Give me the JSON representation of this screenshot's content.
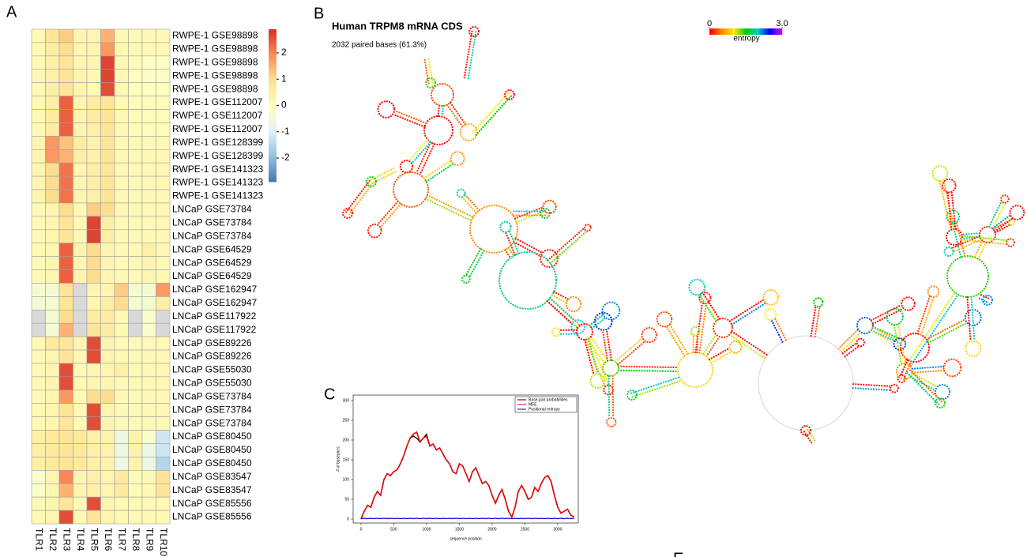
{
  "panels": [
    "A",
    "B",
    "C",
    "E"
  ],
  "structure": {
    "title": "Human TRPM8 mRNA CDS",
    "subtitle": "2032 paired bases (61.3%)",
    "colorbar_label": "entropy",
    "cticks": [
      0,
      {
        "value": 3,
        "label": "3.0"
      }
    ],
    "clim": [
      0,
      3
    ]
  },
  "chart_data": [
    {
      "type": "heatmap",
      "columns": [
        "TLR1",
        "TLR2",
        "TLR3",
        "TLR4",
        "TLR5",
        "TLR6",
        "TLR7",
        "TLR8",
        "TLR9",
        "TLR10"
      ],
      "rows": [
        "RWPE-1 GSE98898",
        "RWPE-1 GSE98898",
        "RWPE-1 GSE98898",
        "RWPE-1 GSE98898",
        "RWPE-1 GSE98898",
        "RWPE-1 GSE112007",
        "RWPE-1 GSE112007",
        "RWPE-1 GSE112007",
        "RWPE-1 GSE128399",
        "RWPE-1 GSE128399",
        "RWPE-1 GSE141323",
        "RWPE-1 GSE141323",
        "RWPE-1 GSE141323",
        "LNCaP GSE73784",
        "LNCaP GSE73784",
        "LNCaP GSE73784",
        "LNCaP GSE64529",
        "LNCaP GSE64529",
        "LNCaP GSE64529",
        "LNCaP GSE162947",
        "LNCaP GSE162947",
        "LNCaP GSE117922",
        "LNCaP GSE117922",
        "LNCaP GSE89226",
        "LNCaP GSE89226",
        "LNCaP GSE55030",
        "LNCaP GSE55030",
        "LNCaP GSE73784",
        "LNCaP GSE73784",
        "LNCaP GSE73784",
        "LNCaP GSE80450",
        "LNCaP GSE80450",
        "LNCaP GSE80450",
        "LNCaP GSE83547",
        "LNCaP GSE83547",
        "LNCaP GSE85556",
        "LNCaP GSE85556"
      ],
      "values": [
        [
          0.2,
          0.8,
          1.2,
          0.3,
          0.3,
          1.5,
          0.2,
          0.2,
          0.2,
          0.2
        ],
        [
          0.2,
          0.6,
          1.0,
          0.3,
          0.3,
          1.8,
          0.2,
          0.2,
          0.2,
          0.2
        ],
        [
          0.2,
          0.5,
          0.8,
          0.3,
          0.3,
          2.7,
          0.2,
          0.1,
          0,
          0
        ],
        [
          0.2,
          0.5,
          0.8,
          0.3,
          0.2,
          2.7,
          0.2,
          0,
          -0.1,
          -0.1
        ],
        [
          0.2,
          0.5,
          0.8,
          0.3,
          0.2,
          2.6,
          0.2,
          0,
          0,
          0
        ],
        [
          0.2,
          0.5,
          2.4,
          0.3,
          0.6,
          0.8,
          0.2,
          0.1,
          0.1,
          0.1
        ],
        [
          0.2,
          0.6,
          2.4,
          0.3,
          0.6,
          0.8,
          0.2,
          0.1,
          0.1,
          0.1
        ],
        [
          0.2,
          0.6,
          2.4,
          0.3,
          0.5,
          0.8,
          0.2,
          0.1,
          0.1,
          0.1
        ],
        [
          0.3,
          1.8,
          1.3,
          0.6,
          0.4,
          0.8,
          0.2,
          0.2,
          0.2,
          0.2
        ],
        [
          0.3,
          1.8,
          1.5,
          0.5,
          0.4,
          0.8,
          0.2,
          0.2,
          0.2,
          0.2
        ],
        [
          0.3,
          1.0,
          2.2,
          0.3,
          0.5,
          0.8,
          0.2,
          0.2,
          0.2,
          0.2
        ],
        [
          0.3,
          1.0,
          2.2,
          0.3,
          0.5,
          0.8,
          0.2,
          0.2,
          0.2,
          0.2
        ],
        [
          0.3,
          1.0,
          2.2,
          0.3,
          0.5,
          0.8,
          0.2,
          0.2,
          0.2,
          0.2
        ],
        [
          0.2,
          0.3,
          1.0,
          0.2,
          1.2,
          1.0,
          0.2,
          0.2,
          0.2,
          0.2
        ],
        [
          0.2,
          0.3,
          0.8,
          0.2,
          2.7,
          0.5,
          0.2,
          0.2,
          0.2,
          0.2
        ],
        [
          0.2,
          0.3,
          0.8,
          0.2,
          2.7,
          0.5,
          0.2,
          0.2,
          0.2,
          0.2
        ],
        [
          0.2,
          0.3,
          2.4,
          0.3,
          1.0,
          0.3,
          0.2,
          0.2,
          0.5,
          0.2
        ],
        [
          0.2,
          0.3,
          2.4,
          0.3,
          1.0,
          0.3,
          0.2,
          0.2,
          0.3,
          0.2
        ],
        [
          0.2,
          0.3,
          2.4,
          0.3,
          1.0,
          0.3,
          0.2,
          0.2,
          0.3,
          0.2
        ],
        [
          -0.3,
          -0.3,
          0.8,
          null,
          0.3,
          0.3,
          1.2,
          -0.3,
          -0.3,
          1.8
        ],
        [
          -0.4,
          -0.3,
          0.8,
          null,
          0.3,
          0.5,
          1.0,
          -0.3,
          -0.3,
          0.5
        ],
        [
          null,
          -0.3,
          1.0,
          null,
          0.6,
          0.6,
          0.2,
          null,
          -0.2,
          null
        ],
        [
          null,
          -0.3,
          1.5,
          null,
          0.8,
          0.6,
          0.2,
          null,
          -0.2,
          null
        ],
        [
          0.2,
          0.7,
          0.8,
          0.3,
          2.6,
          0.3,
          0.2,
          0.2,
          0.2,
          0.2
        ],
        [
          0.2,
          0.3,
          0.8,
          0.2,
          2.6,
          0.3,
          0.2,
          0.2,
          0.2,
          0.2
        ],
        [
          0.2,
          0.3,
          2.6,
          0.2,
          0.3,
          0.3,
          0.5,
          0.2,
          0.2,
          0.2
        ],
        [
          0.2,
          0.3,
          2.6,
          0.2,
          0.3,
          0.3,
          0.2,
          0.2,
          0.2,
          0.2
        ],
        [
          0.2,
          0.3,
          1.8,
          0.2,
          1.0,
          1.0,
          0.2,
          0.2,
          0.2,
          0.2
        ],
        [
          0.2,
          0.3,
          0.8,
          0.2,
          2.6,
          0.3,
          0.2,
          0.2,
          0.2,
          0.2
        ],
        [
          0.2,
          0.3,
          0.8,
          0.2,
          2.6,
          0.3,
          0.2,
          0.2,
          0.2,
          0.2
        ],
        [
          0.5,
          0.7,
          0.8,
          0.7,
          0.5,
          0.4,
          -0.6,
          0.4,
          -0.2,
          -1.2
        ],
        [
          0.5,
          0.7,
          0.8,
          0.7,
          0.5,
          0.4,
          -0.6,
          0.4,
          -0.6,
          -1.2
        ],
        [
          0.5,
          0.7,
          0.8,
          0.7,
          0.5,
          0.4,
          -0.6,
          0.4,
          -0.6,
          -1.5
        ],
        [
          -0.2,
          0.3,
          2.0,
          0.3,
          0.5,
          0.3,
          0.7,
          0.1,
          0.2,
          0.8
        ],
        [
          -0.2,
          0.3,
          1.5,
          0.3,
          0.5,
          0.3,
          0.7,
          0.1,
          0.2,
          0.8
        ],
        [
          0.2,
          0.3,
          0.8,
          0.2,
          2.6,
          0.3,
          0.2,
          0.2,
          0.2,
          0.2
        ],
        [
          0.2,
          0.3,
          2.6,
          0.2,
          0.8,
          0.3,
          0.2,
          0.2,
          0.2,
          0.2
        ]
      ],
      "clim": [
        -2.9,
        2.9
      ],
      "cticks": [
        -2,
        -1,
        0,
        1,
        2
      ],
      "colors": [
        "#4575b4",
        "#91bfdb",
        "#e0f3f8",
        "#ffffbf",
        "#fee090",
        "#fc8d59",
        "#d73027"
      ],
      "na_color": "#d9d9d9"
    },
    {
      "type": "line",
      "xlabel": "sequence position",
      "ylabel": "# of basepairs",
      "x": [
        0,
        50,
        100,
        150,
        200,
        250,
        300,
        350,
        400,
        450,
        500,
        550,
        600,
        650,
        700,
        750,
        800,
        850,
        900,
        950,
        1000,
        1050,
        1100,
        1150,
        1200,
        1250,
        1300,
        1350,
        1400,
        1450,
        1500,
        1550,
        1600,
        1650,
        1700,
        1750,
        1800,
        1850,
        1900,
        1950,
        2000,
        2050,
        2100,
        2150,
        2200,
        2250,
        2300,
        2350,
        2400,
        2450,
        2500,
        2550,
        2600,
        2650,
        2700,
        2750,
        2800,
        2850,
        2900,
        2950,
        3000,
        3050,
        3100,
        3150,
        3200,
        3250
      ],
      "series": [
        {
          "name": "Base-pair probabilities",
          "color": "#000000",
          "values": [
            0,
            20,
            35,
            30,
            55,
            70,
            60,
            100,
            115,
            110,
            120,
            125,
            140,
            160,
            185,
            205,
            210,
            205,
            195,
            205,
            215,
            185,
            190,
            175,
            180,
            165,
            150,
            140,
            120,
            115,
            140,
            135,
            115,
            95,
            120,
            130,
            110,
            90,
            95,
            85,
            60,
            40,
            60,
            75,
            50,
            20,
            5,
            30,
            70,
            85,
            70,
            50,
            55,
            80,
            70,
            90,
            105,
            110,
            95,
            60,
            30,
            15,
            20,
            25,
            10,
            5
          ]
        },
        {
          "name": "MFE",
          "color": "#e00000",
          "values": [
            0,
            20,
            35,
            30,
            55,
            70,
            60,
            100,
            115,
            110,
            120,
            125,
            140,
            160,
            185,
            205,
            215,
            220,
            195,
            205,
            210,
            185,
            190,
            175,
            180,
            165,
            150,
            140,
            120,
            115,
            140,
            135,
            115,
            95,
            120,
            130,
            110,
            90,
            95,
            85,
            60,
            40,
            60,
            75,
            50,
            20,
            5,
            30,
            70,
            85,
            70,
            50,
            55,
            80,
            70,
            90,
            105,
            110,
            95,
            60,
            30,
            15,
            20,
            25,
            10,
            5
          ]
        },
        {
          "name": "Positional entropy",
          "color": "#0000cc",
          "values": [
            1,
            2,
            1,
            2,
            1,
            2,
            1,
            2,
            1,
            2,
            1,
            2,
            1,
            2,
            1,
            2,
            1,
            2,
            1,
            2,
            1,
            2,
            1,
            2,
            1,
            2,
            1,
            2,
            1,
            2,
            1,
            2,
            1,
            2,
            1,
            2,
            1,
            2,
            1,
            2,
            1,
            2,
            1,
            2,
            1,
            2,
            1,
            2,
            1,
            2,
            1,
            2,
            1,
            2,
            1,
            2,
            1,
            2,
            1,
            2,
            1,
            2,
            1,
            2,
            1,
            2
          ]
        }
      ],
      "xlim": [
        -120,
        3314
      ],
      "xticks": [
        0,
        500,
        1000,
        1500,
        2000,
        2500,
        3000
      ],
      "ylim": [
        -10,
        314
      ],
      "yticks": [
        0,
        50,
        100,
        150,
        200,
        250,
        300
      ],
      "legend": "top-right"
    }
  ]
}
